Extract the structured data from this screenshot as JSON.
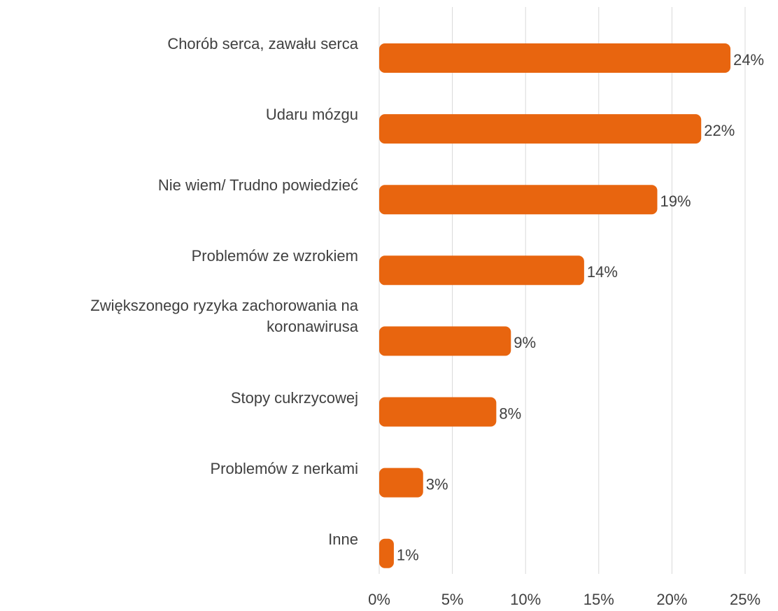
{
  "chart_data": {
    "type": "bar",
    "orientation": "horizontal",
    "categories": [
      "Chorób serca, zawału serca",
      "Udaru mózgu",
      "Nie wiem/ Trudno powiedzieć",
      "Problemów ze wzrokiem",
      "Zwiększonego ryzyka zachorowania na koronawirusa",
      "Stopy cukrzycowej",
      "Problemów z nerkami",
      "Inne"
    ],
    "values": [
      24,
      22,
      19,
      14,
      9,
      8,
      3,
      1
    ],
    "value_labels": [
      "24%",
      "22%",
      "19%",
      "14%",
      "9%",
      "8%",
      "3%",
      "1%"
    ],
    "color": "#e8650f",
    "xlim": [
      0,
      25
    ],
    "xticks": [
      {
        "value": 0,
        "label": "0%"
      },
      {
        "value": 5,
        "label": "5%"
      },
      {
        "value": 10,
        "label": "10%"
      },
      {
        "value": 15,
        "label": "15%"
      },
      {
        "value": 20,
        "label": "20%"
      },
      {
        "value": 25,
        "label": "25%"
      }
    ],
    "grid": true
  }
}
